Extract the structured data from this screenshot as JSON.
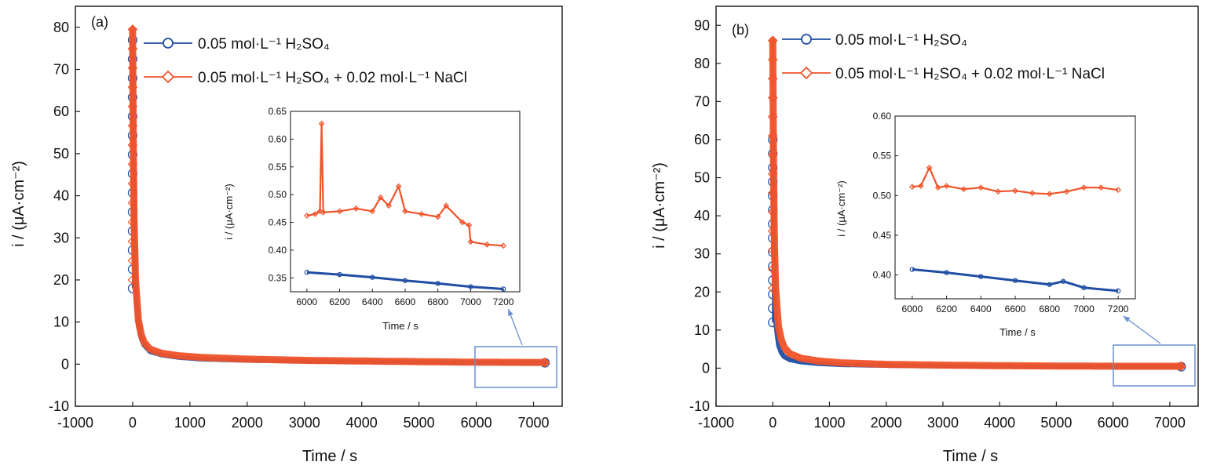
{
  "colors": {
    "blue": "#1f4ea3",
    "orange": "#f0532a",
    "zoom_box": "#6a8fd0",
    "axis": "#222222"
  },
  "chart_data": [
    {
      "panel": "(a)",
      "type": "scatter",
      "xlabel": "Time / s",
      "ylabel": "i / (μA·cm⁻²)",
      "xlim": [
        -1000,
        7500
      ],
      "ylim": [
        -10,
        85
      ],
      "xticks": [
        -1000,
        0,
        1000,
        2000,
        3000,
        4000,
        5000,
        6000,
        7000
      ],
      "yticks": [
        -10,
        0,
        10,
        20,
        30,
        40,
        50,
        60,
        70,
        80
      ],
      "legend_position": "top-center",
      "series": [
        {
          "name": "0.05 mol·L⁻¹ H₂SO₄",
          "color": "#1f4ea3",
          "marker": "circle",
          "x": [
            0,
            10,
            25,
            50,
            100,
            150,
            200,
            300,
            500,
            800,
            1200,
            2000,
            3000,
            4000,
            5000,
            6000,
            7000,
            7200
          ],
          "y": [
            77,
            50,
            30,
            18,
            9,
            6,
            4.5,
            3,
            2.2,
            1.6,
            1.2,
            0.9,
            0.7,
            0.55,
            0.45,
            0.36,
            0.33,
            0.33
          ]
        },
        {
          "name": "0.05 mol·L⁻¹ H₂SO₄ + 0.02 mol·L⁻¹ NaCl",
          "color": "#f0532a",
          "marker": "diamond",
          "x": [
            0,
            10,
            25,
            50,
            100,
            150,
            200,
            300,
            500,
            800,
            1200,
            2000,
            3000,
            4000,
            5000,
            6000,
            7000,
            7200
          ],
          "y": [
            79.5,
            55,
            34,
            20,
            10.5,
            7,
            5.2,
            3.6,
            2.6,
            2,
            1.6,
            1.2,
            0.9,
            0.75,
            0.6,
            0.46,
            0.41,
            0.41
          ]
        }
      ],
      "zoom_region": {
        "x": [
          6000,
          7200
        ]
      },
      "inset": {
        "xlabel": "Time / s",
        "ylabel": "i / (μA·cm⁻²)",
        "xlim": [
          5900,
          7300
        ],
        "ylim": [
          0.325,
          0.65
        ],
        "xticks": [
          6000,
          6200,
          6400,
          6600,
          6800,
          7000,
          7200
        ],
        "yticks": [
          0.35,
          0.4,
          0.45,
          0.5,
          0.55,
          0.6,
          0.65
        ],
        "series": [
          {
            "color": "#1f4ea3",
            "marker": "circle",
            "x": [
              6000,
              6200,
              6400,
              6600,
              6800,
              7000,
              7200
            ],
            "y": [
              0.36,
              0.356,
              0.351,
              0.345,
              0.34,
              0.334,
              0.33
            ]
          },
          {
            "color": "#f0532a",
            "marker": "diamond",
            "x": [
              6000,
              6050,
              6080,
              6090,
              6100,
              6200,
              6300,
              6400,
              6450,
              6500,
              6560,
              6600,
              6700,
              6800,
              6850,
              6950,
              6990,
              7000,
              7100,
              7200
            ],
            "y": [
              0.462,
              0.465,
              0.47,
              0.628,
              0.468,
              0.47,
              0.475,
              0.47,
              0.495,
              0.48,
              0.515,
              0.47,
              0.465,
              0.46,
              0.48,
              0.45,
              0.445,
              0.415,
              0.41,
              0.408
            ]
          }
        ]
      }
    },
    {
      "panel": "(b)",
      "type": "scatter",
      "xlabel": "Time / s",
      "ylabel": "i / (μA·cm⁻²)",
      "xlim": [
        -1000,
        7500
      ],
      "ylim": [
        -10,
        95
      ],
      "xticks": [
        -1000,
        0,
        1000,
        2000,
        3000,
        4000,
        5000,
        6000,
        7000
      ],
      "yticks": [
        -10,
        0,
        10,
        20,
        30,
        40,
        50,
        60,
        70,
        80,
        90
      ],
      "legend_position": "top-center",
      "series": [
        {
          "name": "0.05 mol·L⁻¹ H₂SO₄",
          "color": "#1f4ea3",
          "marker": "circle",
          "x": [
            0,
            10,
            25,
            50,
            100,
            150,
            200,
            300,
            500,
            800,
            1200,
            2000,
            3000,
            4000,
            5000,
            6000,
            7000,
            7200
          ],
          "y": [
            60,
            35,
            20,
            12,
            6,
            4,
            3,
            2.2,
            1.6,
            1.2,
            0.9,
            0.7,
            0.55,
            0.48,
            0.43,
            0.4,
            0.38,
            0.38
          ]
        },
        {
          "name": "0.05 mol·L⁻¹ H₂SO₄ + 0.02 mol·L⁻¹ NaCl",
          "color": "#f0532a",
          "marker": "diamond",
          "x": [
            0,
            10,
            25,
            50,
            100,
            150,
            200,
            300,
            500,
            800,
            1200,
            2000,
            3000,
            4000,
            5000,
            6000,
            7000,
            7200
          ],
          "y": [
            86,
            60,
            36,
            21,
            11,
            7.5,
            5.5,
            3.8,
            2.6,
            1.9,
            1.4,
            1.0,
            0.8,
            0.65,
            0.57,
            0.51,
            0.51,
            0.51
          ]
        }
      ],
      "zoom_region": {
        "x": [
          6000,
          7200
        ]
      },
      "inset": {
        "xlabel": "Time / s",
        "ylabel": "i / (μA·cm⁻²)",
        "xlim": [
          5900,
          7300
        ],
        "ylim": [
          0.37,
          0.6
        ],
        "xticks": [
          6000,
          6200,
          6400,
          6600,
          6800,
          7000,
          7200
        ],
        "yticks": [
          0.4,
          0.45,
          0.5,
          0.55,
          0.6
        ],
        "series": [
          {
            "color": "#1f4ea3",
            "marker": "circle",
            "x": [
              6000,
              6200,
              6400,
              6600,
              6800,
              6880,
              7000,
              7200
            ],
            "y": [
              0.407,
              0.403,
              0.398,
              0.393,
              0.388,
              0.392,
              0.384,
              0.38
            ]
          },
          {
            "color": "#f0532a",
            "marker": "diamond",
            "x": [
              6000,
              6050,
              6100,
              6150,
              6200,
              6300,
              6400,
              6500,
              6600,
              6700,
              6800,
              6900,
              7000,
              7100,
              7200
            ],
            "y": [
              0.511,
              0.512,
              0.535,
              0.51,
              0.512,
              0.508,
              0.51,
              0.505,
              0.506,
              0.503,
              0.502,
              0.505,
              0.51,
              0.51,
              0.507
            ]
          }
        ]
      }
    }
  ]
}
